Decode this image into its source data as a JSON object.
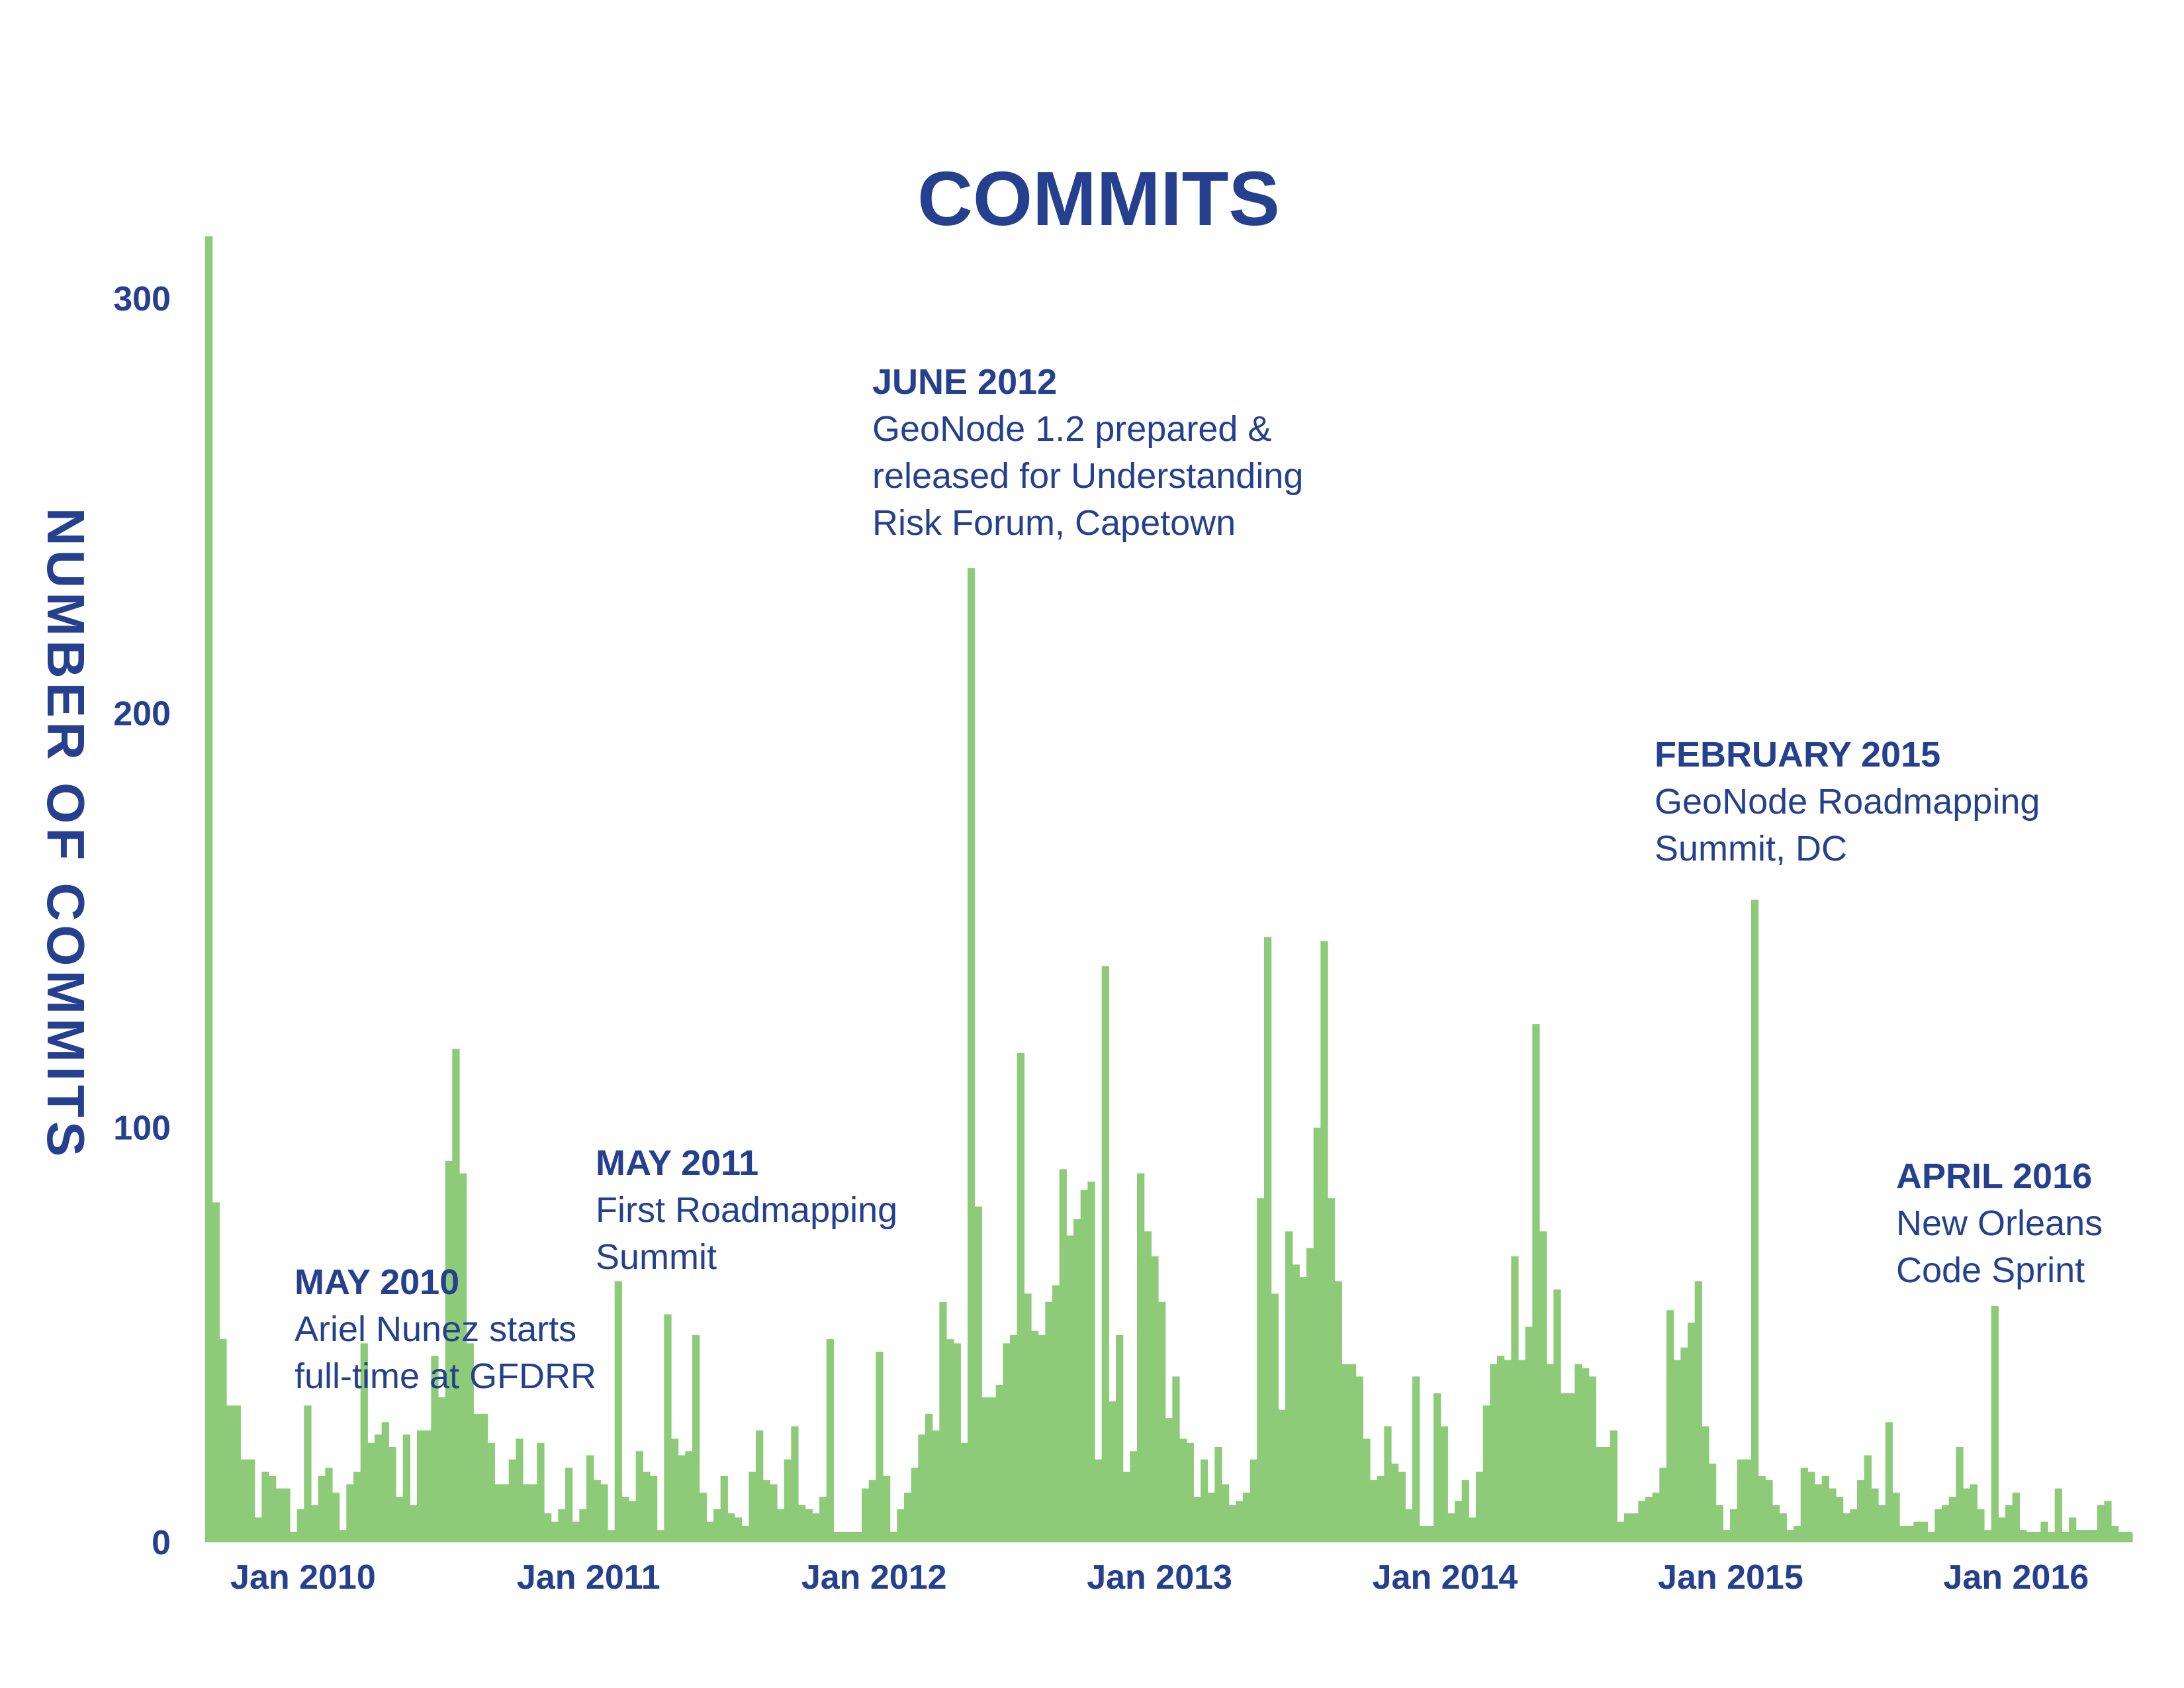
{
  "chart_data": {
    "type": "bar",
    "title": "COMMITS",
    "ylabel": "NUMBER OF COMMITS",
    "xlabel": "",
    "ylim": [
      0,
      315
    ],
    "grid": false,
    "color": "#8dcb78",
    "text_color": "#24408e",
    "y_ticks": [
      0,
      100,
      200,
      300
    ],
    "x_tick_labels": [
      "Jan 2010",
      "Jan 2011",
      "Jan 2012",
      "Jan 2013",
      "Jan 2014",
      "Jan 2015",
      "Jan 2016"
    ],
    "x_start": "2009-10",
    "x_end": "2016-06",
    "series": [
      {
        "values": [
          315,
          82,
          49,
          33,
          33,
          20,
          20,
          6,
          17,
          16,
          13,
          13,
          2,
          8,
          33,
          9,
          16,
          18,
          12,
          3,
          14,
          17,
          48,
          24,
          26,
          29,
          23,
          11,
          26,
          9,
          27,
          27,
          45,
          35,
          92,
          119,
          89,
          48,
          31,
          31,
          24,
          14,
          14,
          20,
          25,
          14,
          14,
          24,
          7,
          5,
          8,
          18,
          5,
          8,
          21,
          15,
          14,
          3,
          63,
          11,
          10,
          22,
          17,
          16,
          3,
          55,
          25,
          21,
          22,
          50,
          12,
          5,
          8,
          16,
          7,
          6,
          4,
          17,
          27,
          15,
          14,
          8,
          20,
          28,
          9,
          8,
          7,
          11,
          49,
          2,
          2,
          2,
          2,
          13,
          15,
          46,
          16,
          1,
          8,
          12,
          18,
          26,
          31,
          27,
          58,
          49,
          48,
          24,
          235,
          81,
          35,
          35,
          38,
          48,
          50,
          118,
          60,
          51,
          50,
          58,
          62,
          90,
          74,
          78,
          85,
          87,
          20,
          139,
          34,
          50,
          17,
          22,
          89,
          75,
          69,
          58,
          30,
          40,
          25,
          24,
          11,
          20,
          12,
          23,
          14,
          9,
          10,
          12,
          20,
          83,
          146,
          60,
          32,
          75,
          67,
          64,
          71,
          100,
          145,
          83,
          63,
          43,
          43,
          40,
          25,
          15,
          16,
          28,
          19,
          17,
          8,
          40,
          4,
          4,
          36,
          28,
          7,
          10,
          15,
          6,
          17,
          33,
          43,
          45,
          44,
          69,
          44,
          52,
          125,
          75,
          43,
          61,
          36,
          36,
          43,
          42,
          40,
          23,
          23,
          27,
          5,
          7,
          7,
          10,
          11,
          12,
          18,
          56,
          44,
          47,
          53,
          63,
          28,
          19,
          9,
          3,
          8,
          20,
          20,
          155,
          16,
          15,
          9,
          7,
          3,
          4,
          18,
          17,
          14,
          16,
          13,
          11,
          7,
          8,
          15,
          21,
          13,
          9,
          29,
          12,
          4,
          4,
          5,
          5,
          2,
          8,
          9,
          11,
          23,
          13,
          14,
          8,
          3,
          57,
          6,
          9,
          12,
          3,
          2,
          2,
          5,
          2,
          13,
          2,
          6,
          3,
          3,
          3,
          9,
          10,
          4,
          2,
          2
        ]
      }
    ],
    "annotations": [
      {
        "head": "MAY 2010",
        "lines": [
          "Ariel Nunez starts",
          "full-time at GFDRR"
        ]
      },
      {
        "head": "MAY 2011",
        "lines": [
          "First Roadmapping",
          "Summit"
        ]
      },
      {
        "head": "JUNE 2012",
        "lines": [
          "GeoNode 1.2 prepared &",
          "released for Understanding",
          "Risk Forum, Capetown"
        ]
      },
      {
        "head": "FEBRUARY 2015",
        "lines": [
          "GeoNode Roadmapping",
          "Summit, DC"
        ]
      },
      {
        "head": "APRIL 2016",
        "lines": [
          "New Orleans",
          "Code Sprint"
        ]
      }
    ]
  }
}
